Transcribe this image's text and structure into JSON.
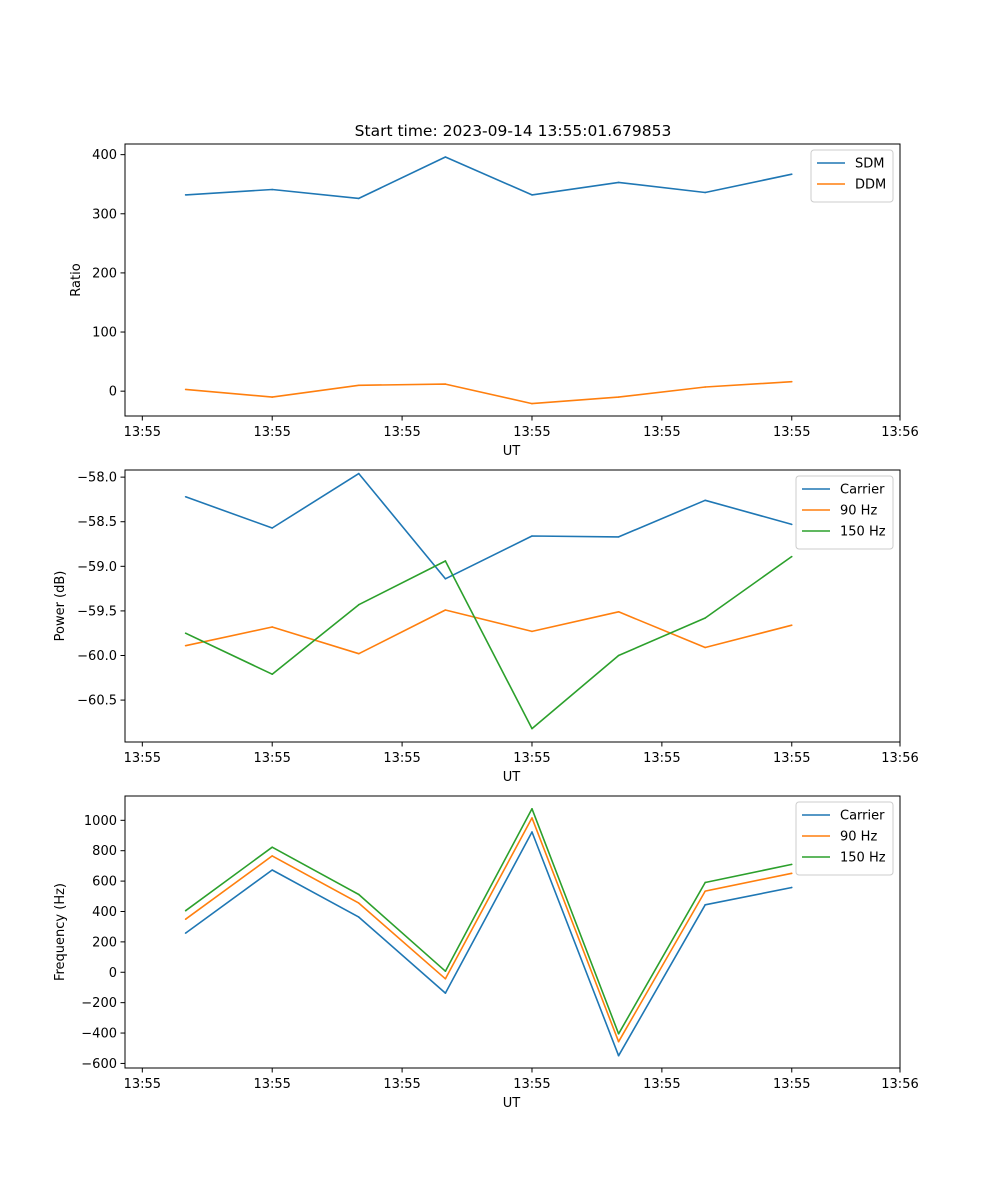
{
  "figure": {
    "title": "Start time: 2023-09-14 13:55:01.679853"
  },
  "colors": {
    "c0": "#1f77b4",
    "c1": "#ff7f0e",
    "c2": "#2ca02c"
  },
  "chart_data": [
    {
      "type": "line",
      "title": "Start time: 2023-09-14 13:55:01.679853",
      "xlabel": "UT",
      "ylabel": "Ratio",
      "x": [
        1,
        2,
        3,
        4,
        5,
        6,
        7,
        8
      ],
      "xlim": [
        0.3,
        9.25
      ],
      "xticks": [
        0.5,
        2,
        3.5,
        5,
        6.5,
        8,
        9.25
      ],
      "xtick_labels": [
        "13:55",
        "13:55",
        "13:55",
        "13:55",
        "13:55",
        "13:55",
        "13:56"
      ],
      "ylim": [
        -42,
        418
      ],
      "yticks": [
        0,
        100,
        200,
        300,
        400
      ],
      "ytick_labels": [
        "0",
        "100",
        "200",
        "300",
        "400"
      ],
      "legend": "top-right",
      "series": [
        {
          "name": "SDM",
          "color": "#1f77b4",
          "values": [
            332,
            341,
            326,
            396,
            332,
            353,
            336,
            367
          ]
        },
        {
          "name": "DDM",
          "color": "#ff7f0e",
          "values": [
            3,
            -10,
            10,
            12,
            -21,
            -10,
            7,
            16
          ]
        }
      ]
    },
    {
      "type": "line",
      "title": "",
      "xlabel": "UT",
      "ylabel": "Power (dB)",
      "x": [
        1,
        2,
        3,
        4,
        5,
        6,
        7,
        8
      ],
      "xlim": [
        0.3,
        9.25
      ],
      "xticks": [
        0.5,
        2,
        3.5,
        5,
        6.5,
        8,
        9.25
      ],
      "xtick_labels": [
        "13:55",
        "13:55",
        "13:55",
        "13:55",
        "13:55",
        "13:55",
        "13:56"
      ],
      "ylim": [
        -60.97,
        -57.92
      ],
      "yticks": [
        -58.0,
        -58.5,
        -59.0,
        -59.5,
        -60.0,
        -60.5
      ],
      "ytick_labels": [
        "−58.0",
        "−58.5",
        "−59.0",
        "−59.5",
        "−60.0",
        "−60.5"
      ],
      "legend": "top-right",
      "series": [
        {
          "name": "Carrier",
          "color": "#1f77b4",
          "values": [
            -58.22,
            -58.57,
            -57.96,
            -59.14,
            -58.66,
            -58.67,
            -58.26,
            -58.53
          ]
        },
        {
          "name": "90 Hz",
          "color": "#ff7f0e",
          "values": [
            -59.89,
            -59.68,
            -59.98,
            -59.49,
            -59.73,
            -59.51,
            -59.91,
            -59.66
          ]
        },
        {
          "name": "150 Hz",
          "color": "#2ca02c",
          "values": [
            -59.75,
            -60.21,
            -59.43,
            -58.94,
            -60.82,
            -60.0,
            -59.58,
            -58.89
          ]
        }
      ]
    },
    {
      "type": "line",
      "title": "",
      "xlabel": "UT",
      "ylabel": "Frequency (Hz)",
      "x": [
        1,
        2,
        3,
        4,
        5,
        6,
        7,
        8
      ],
      "xlim": [
        0.3,
        9.25
      ],
      "xticks": [
        0.5,
        2,
        3.5,
        5,
        6.5,
        8,
        9.25
      ],
      "xtick_labels": [
        "13:55",
        "13:55",
        "13:55",
        "13:55",
        "13:55",
        "13:55",
        "13:56"
      ],
      "ylim": [
        -630,
        1160
      ],
      "yticks": [
        -600,
        -400,
        -200,
        0,
        200,
        400,
        600,
        800,
        1000
      ],
      "ytick_labels": [
        "−600",
        "−400",
        "−200",
        "0",
        "200",
        "400",
        "600",
        "800",
        "1000"
      ],
      "legend": "top-right",
      "series": [
        {
          "name": "Carrier",
          "color": "#1f77b4",
          "values": [
            258,
            673,
            363,
            -137,
            923,
            -549,
            444,
            558
          ]
        },
        {
          "name": "90 Hz",
          "color": "#ff7f0e",
          "values": [
            349,
            766,
            455,
            -43,
            1016,
            -457,
            534,
            651
          ]
        },
        {
          "name": "150 Hz",
          "color": "#2ca02c",
          "values": [
            405,
            823,
            512,
            7,
            1076,
            -405,
            591,
            710
          ]
        }
      ]
    }
  ]
}
